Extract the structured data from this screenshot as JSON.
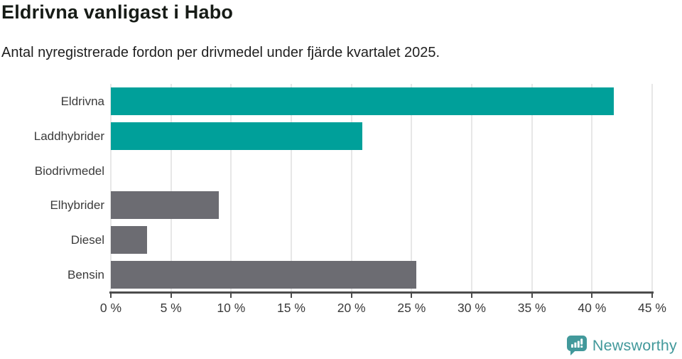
{
  "title": "Eldrivna vanligast i Habo",
  "subtitle": "Antal nyregistrerade fordon per drivmedel under fjärde kvartalet 2025.",
  "chart_data": {
    "type": "bar",
    "orientation": "horizontal",
    "title": "Eldrivna vanligast i Habo",
    "subtitle": "Antal nyregistrerade fordon per drivmedel under fjärde kvartalet 2025.",
    "categories": [
      "Eldrivna",
      "Laddhybrider",
      "Biodrivmedel",
      "Elhybrider",
      "Diesel",
      "Bensin"
    ],
    "values": [
      41.8,
      20.9,
      0,
      9.0,
      3.0,
      25.4
    ],
    "unit": "%",
    "bar_colors": [
      "#00a09a",
      "#00a09a",
      "#6c6c72",
      "#6c6c72",
      "#6c6c72",
      "#6c6c72"
    ],
    "highlight_color": "#00a09a",
    "default_color": "#6c6c72",
    "xlim": [
      0,
      45
    ],
    "x_ticks": [
      0,
      5,
      10,
      15,
      20,
      25,
      30,
      35,
      40,
      45
    ],
    "x_tick_labels": [
      "0 %",
      "5 %",
      "10 %",
      "15 %",
      "20 %",
      "25 %",
      "30 %",
      "35 %",
      "40 %",
      "45 %"
    ],
    "grid": true,
    "gridline_color": "#e7e7e7",
    "legend": false
  },
  "branding": {
    "logo_text": "Newsworthy",
    "logo_color": "#42999b",
    "logo_icon": "newsworthy-speech-bubble-chart-icon"
  }
}
